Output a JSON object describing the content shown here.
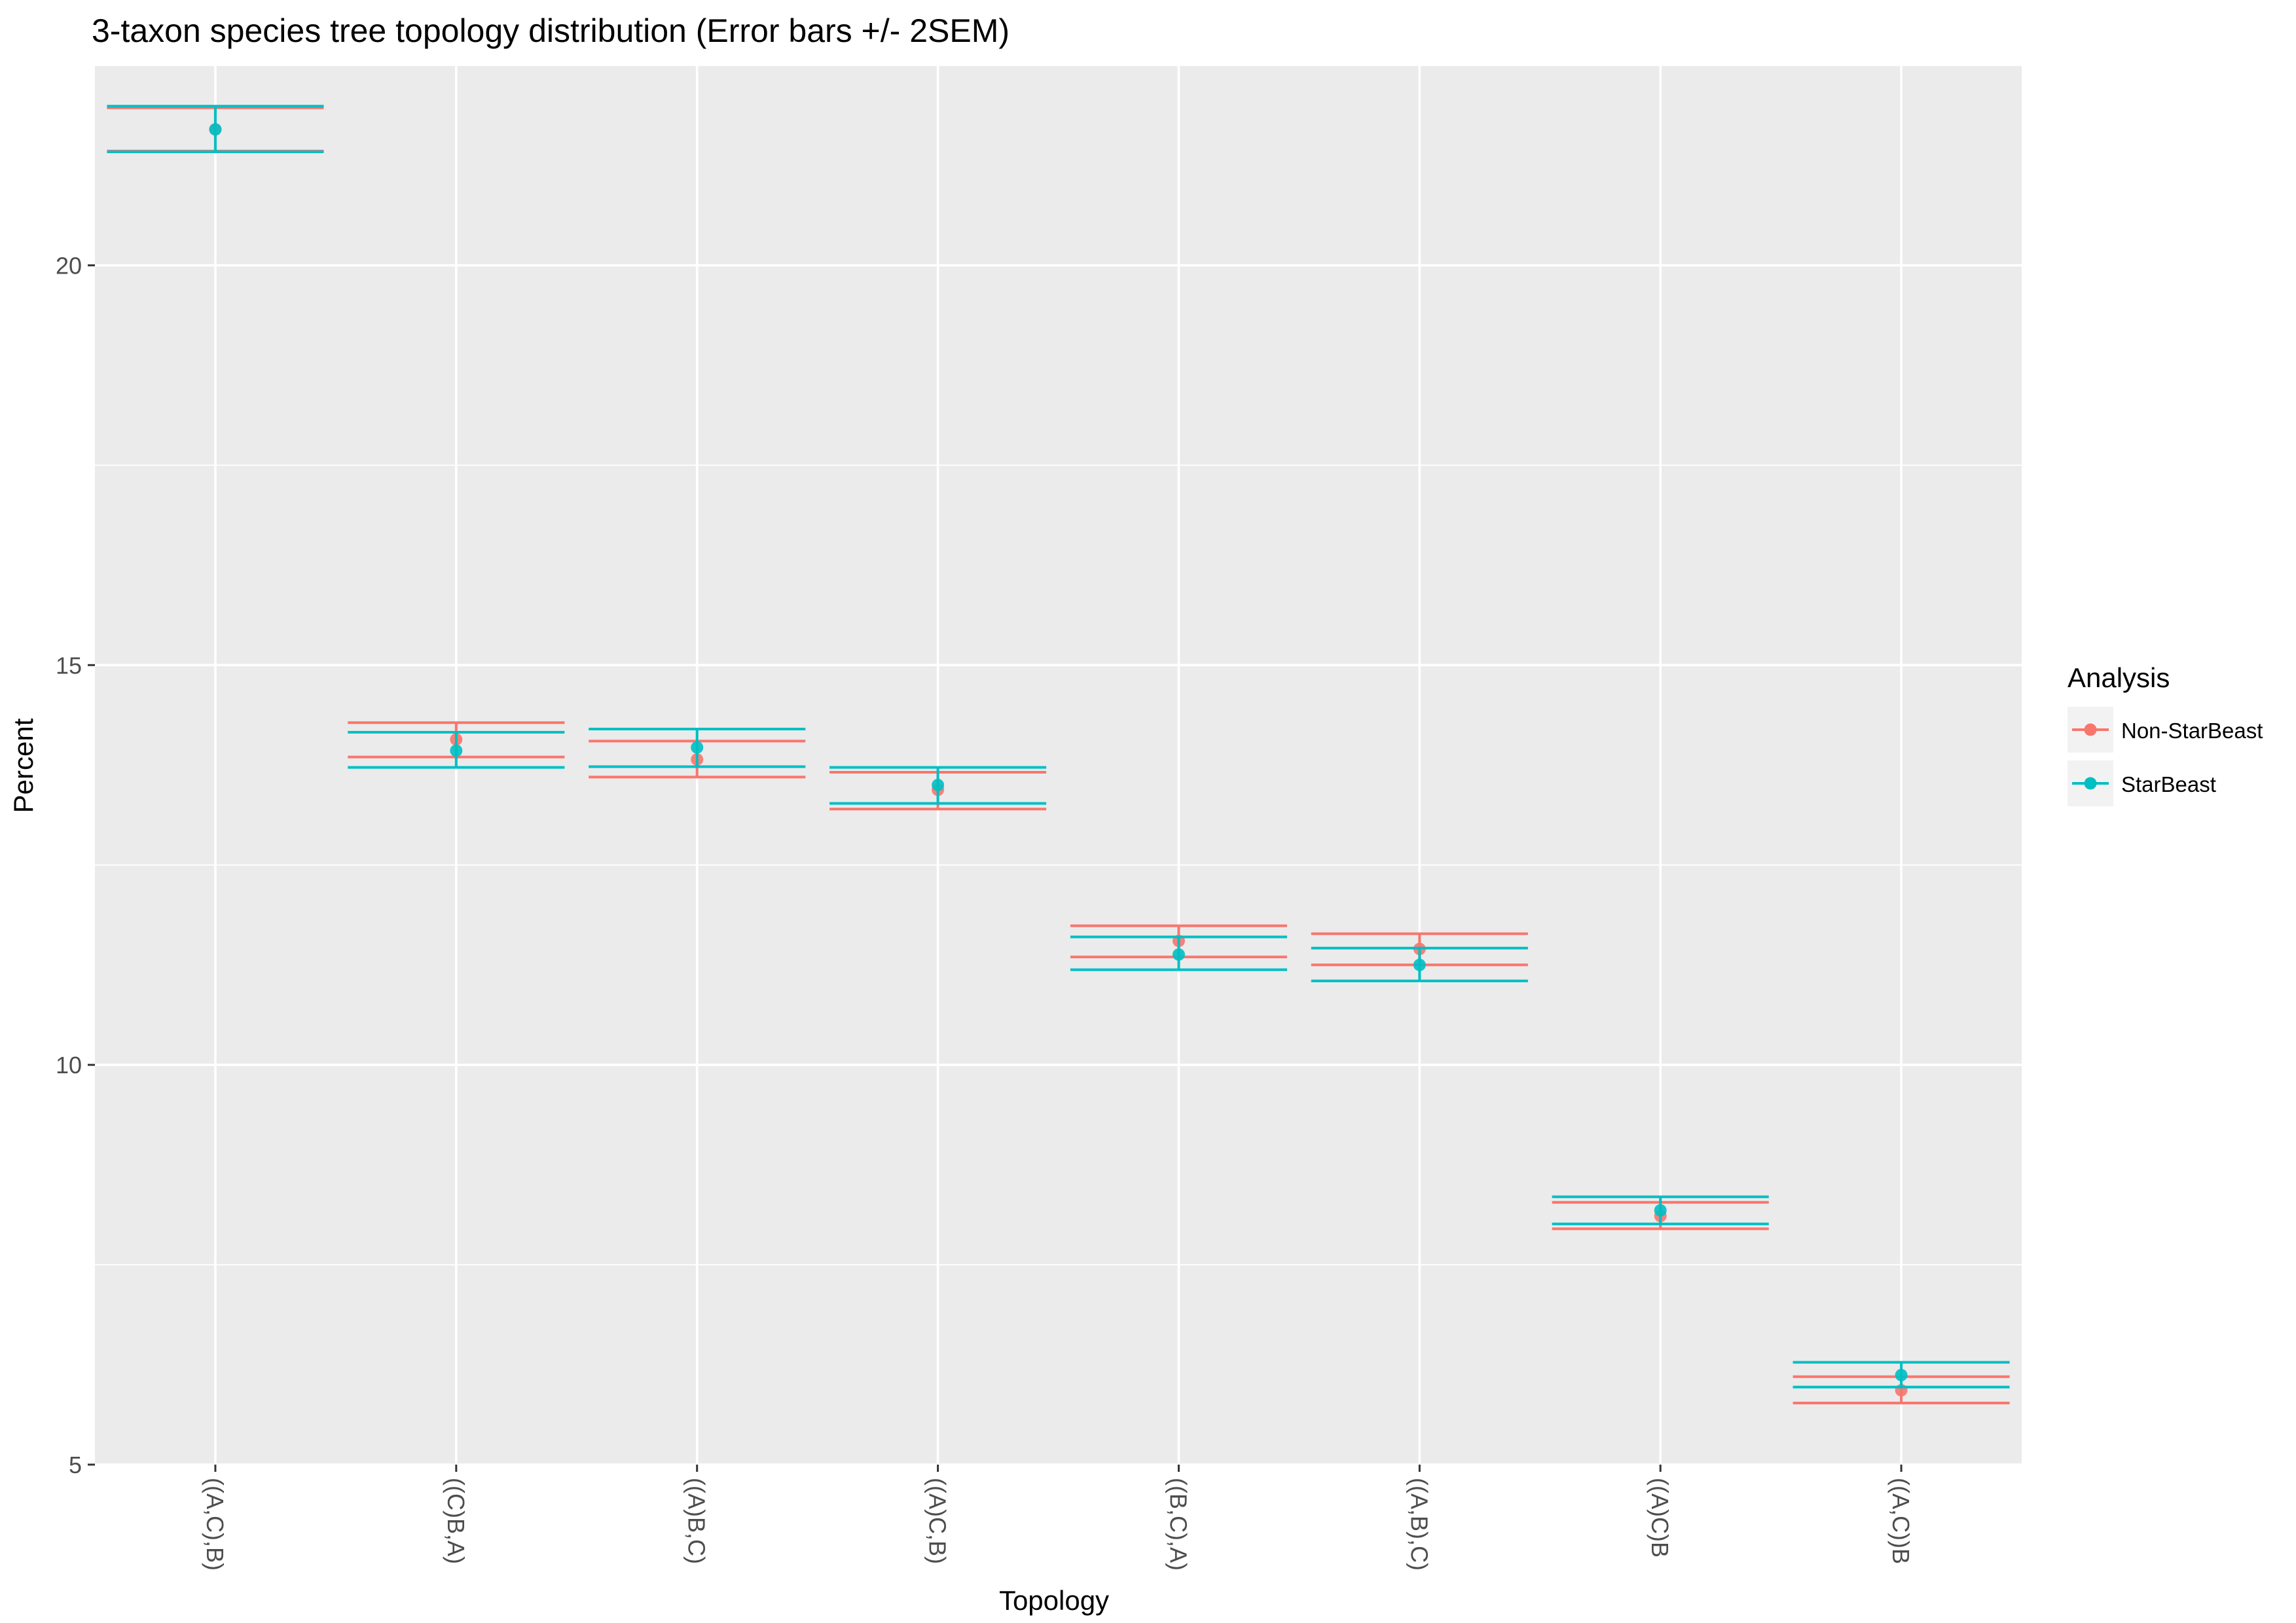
{
  "chart_data": {
    "type": "errorbar",
    "title": "3-taxon species tree topology distribution (Error bars +/- 2SEM)",
    "xlabel": "Topology",
    "ylabel": "Percent",
    "ylim": [
      5,
      22.5
    ],
    "yticks": [
      5,
      10,
      15,
      20
    ],
    "grid": true,
    "legend": {
      "title": "Analysis",
      "position": "right"
    },
    "categories": [
      "((A,C),B)",
      "((C)B,A)",
      "((A)B,C)",
      "((A)C,B)",
      "((B,C),A)",
      "((A,B),C)",
      "((A)C)B",
      "((A,C))B"
    ],
    "series": [
      {
        "name": "Non-StarBeast",
        "color": "#F8766D",
        "values": [
          21.7,
          14.07,
          13.82,
          13.44,
          11.55,
          11.45,
          8.11,
          5.93
        ],
        "lower": [
          21.43,
          13.85,
          13.6,
          13.2,
          11.35,
          11.25,
          7.95,
          5.77
        ],
        "upper": [
          21.97,
          14.28,
          14.05,
          13.66,
          11.74,
          11.64,
          8.28,
          6.1
        ]
      },
      {
        "name": "StarBeast",
        "color": "#00BFC4",
        "values": [
          21.7,
          13.93,
          13.97,
          13.5,
          11.38,
          11.25,
          8.18,
          6.12
        ],
        "lower": [
          21.42,
          13.72,
          13.73,
          13.27,
          11.19,
          11.05,
          8.01,
          5.97
        ],
        "upper": [
          21.99,
          14.16,
          14.2,
          13.72,
          11.6,
          11.46,
          8.35,
          6.28
        ]
      }
    ]
  }
}
